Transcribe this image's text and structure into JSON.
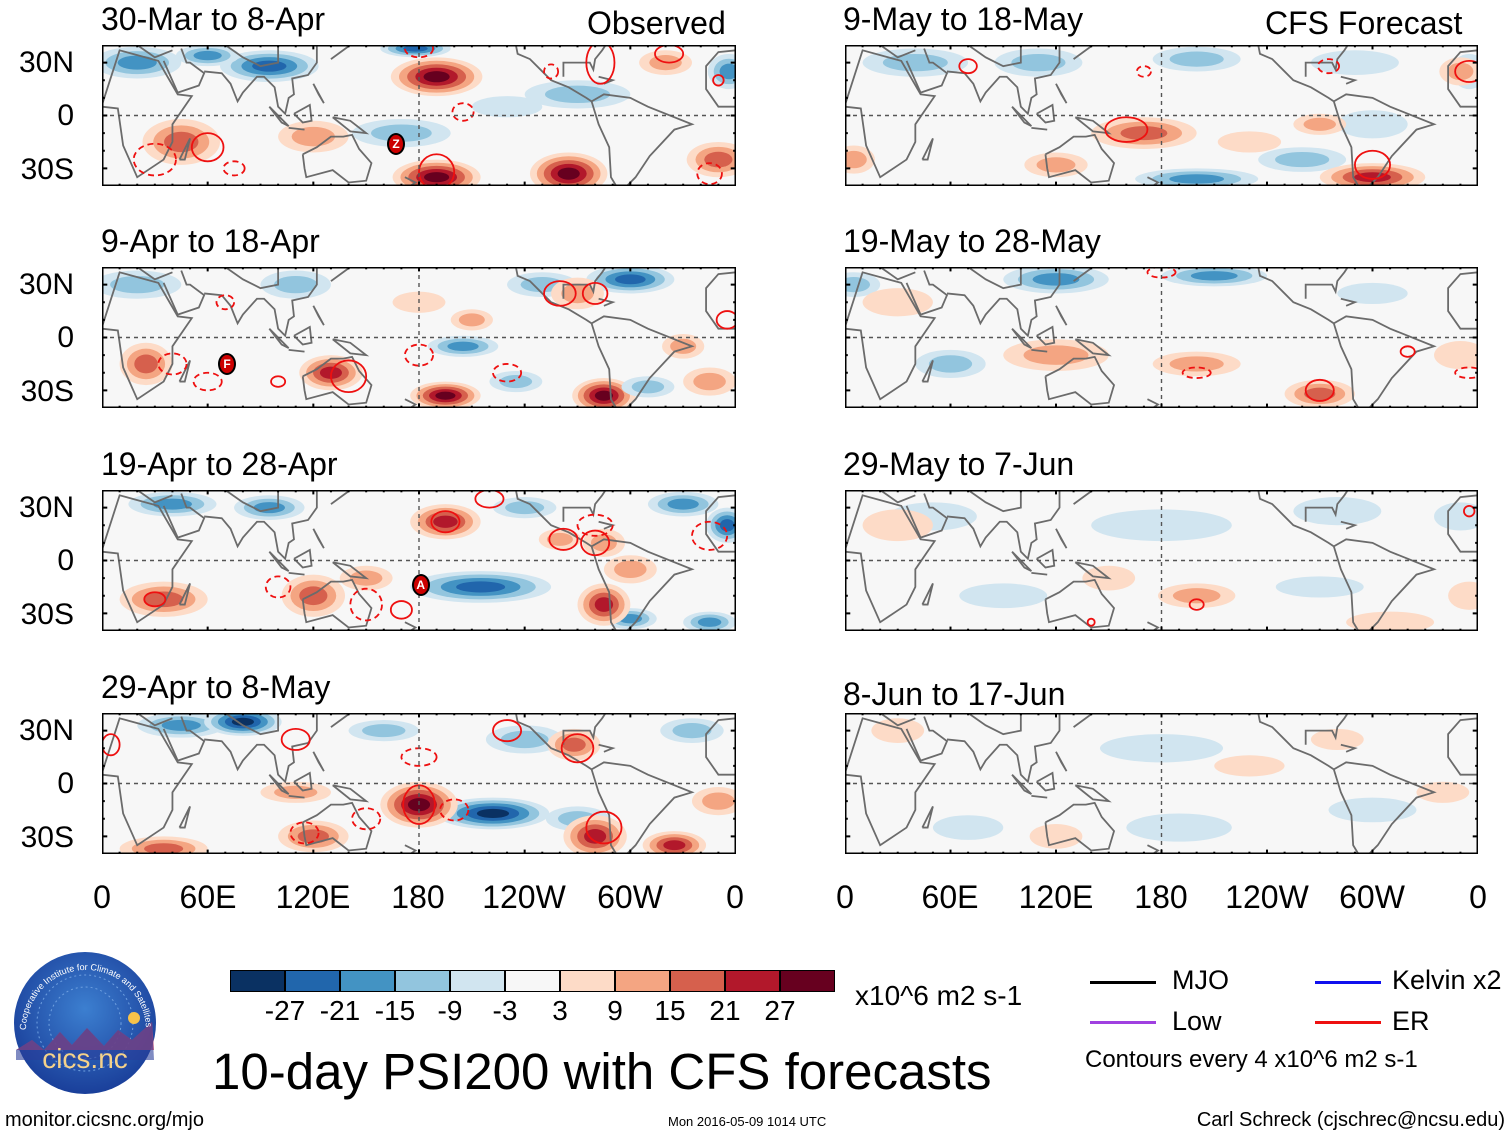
{
  "panels_left_header": "Observed",
  "panels_right_header": "CFS Forecast",
  "panels": [
    {
      "title": "30-Mar to 8-Apr",
      "storms": [
        "Z"
      ]
    },
    {
      "title": "9-Apr to 18-Apr",
      "storms": [
        "F"
      ]
    },
    {
      "title": "19-Apr to 28-Apr",
      "storms": [
        "A"
      ]
    },
    {
      "title": "29-Apr to 8-May",
      "storms": []
    },
    {
      "title": "9-May to 18-May",
      "storms": []
    },
    {
      "title": "19-May to 28-May",
      "storms": []
    },
    {
      "title": "29-May to 7-Jun",
      "storms": []
    },
    {
      "title": "8-Jun to 17-Jun",
      "storms": []
    }
  ],
  "lat_labels": [
    "30N",
    "0",
    "30S"
  ],
  "lon_labels": [
    "0",
    "60E",
    "120E",
    "180",
    "120W",
    "60W",
    "0"
  ],
  "colorbar": {
    "colors": [
      "#0a3162",
      "#2166ac",
      "#4393c3",
      "#92c5de",
      "#d1e5f0",
      "#f7f7f7",
      "#fddbc7",
      "#f4a582",
      "#d6604d",
      "#b2182b",
      "#67001f"
    ],
    "labels": [
      "-27",
      "-21",
      "-15",
      "-9",
      "-3",
      "3",
      "9",
      "15",
      "21",
      "27"
    ],
    "units": "x10^6 m2 s-1"
  },
  "legend": {
    "items": [
      {
        "label": "MJO",
        "color": "#000000"
      },
      {
        "label": "Kelvin x2",
        "color": "#1010ee"
      },
      {
        "label": "Low",
        "color": "#a040e0"
      },
      {
        "label": "ER",
        "color": "#ee1010"
      }
    ],
    "contours_note": "Contours every 4 x10^6 m2 s-1"
  },
  "main_title": "10-day PSI200 with CFS forecasts",
  "logo": {
    "name": "cics.nc",
    "ring_text": "Cooperative Institute for Climate and Satellites"
  },
  "footer": {
    "url": "monitor.cicsnc.org/mjo",
    "timestamp": "Mon 2016-05-09 1014 UTC",
    "author": "Carl Schreck (cjschrec@ncsu.edu)"
  }
}
